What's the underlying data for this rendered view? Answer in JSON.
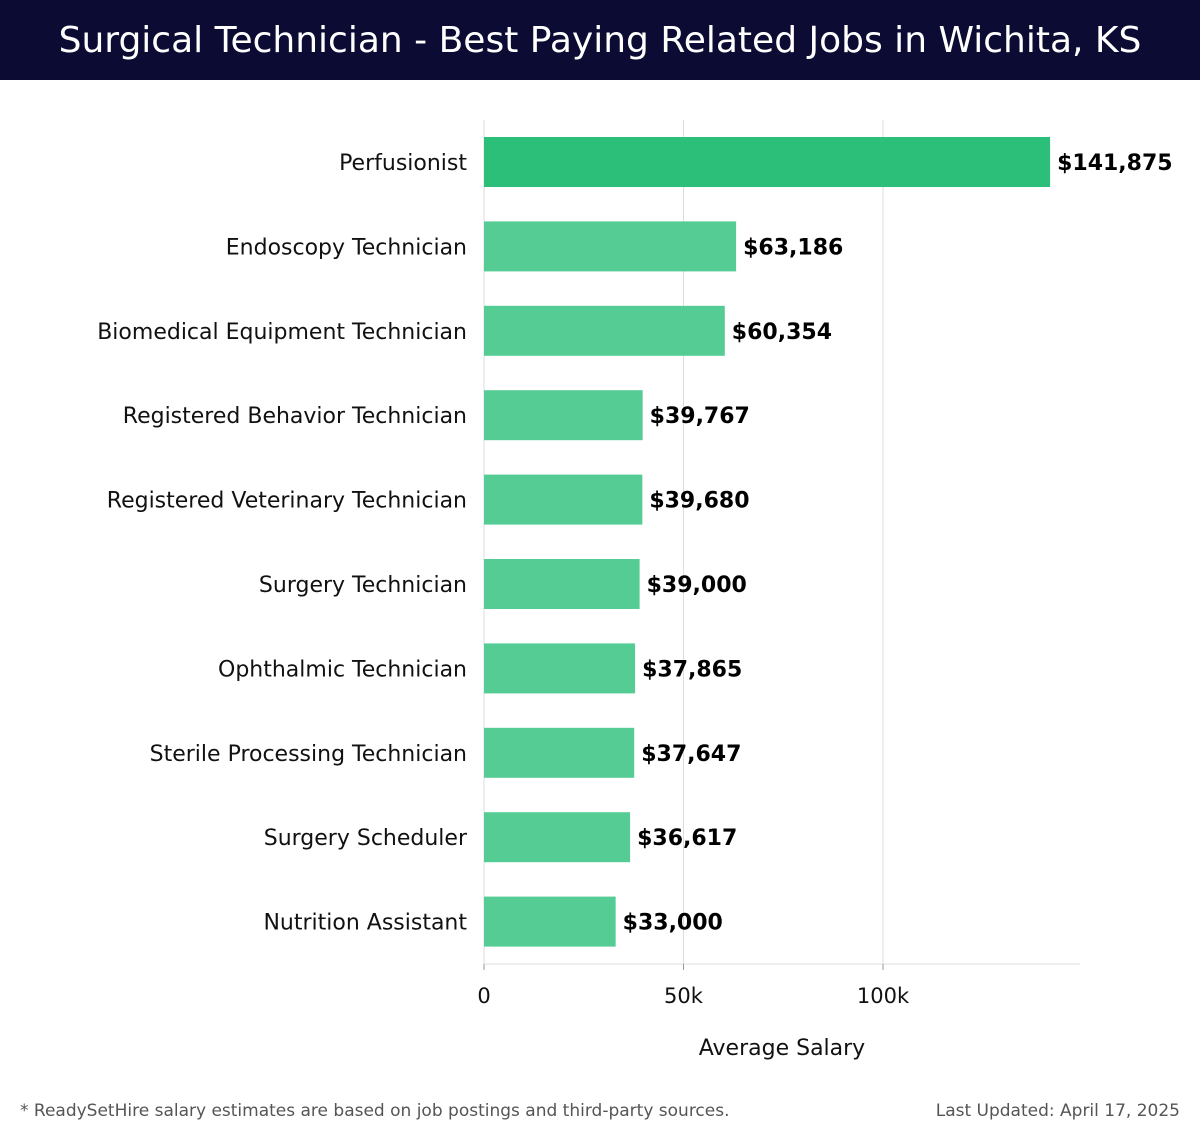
{
  "header": {
    "title": "Surgical Technician - Best Paying Related Jobs in Wichita, KS"
  },
  "footer": {
    "note": "* ReadySetHire salary estimates are based on job postings and third-party sources.",
    "updated": "Last Updated: April 17, 2025"
  },
  "colors": {
    "title_background": "#0b0b33",
    "top_bar": "#2bbf7a",
    "bar": "#56cc95",
    "grid": "#dddddd"
  },
  "chart_data": {
    "type": "bar",
    "orientation": "horizontal",
    "categories": [
      "Perfusionist",
      "Endoscopy Technician",
      "Biomedical Equipment Technician",
      "Registered Behavior Technician",
      "Registered Veterinary Technician",
      "Surgery Technician",
      "Ophthalmic Technician",
      "Sterile Processing Technician",
      "Surgery Scheduler",
      "Nutrition Assistant"
    ],
    "values": [
      141875,
      63186,
      60354,
      39767,
      39680,
      39000,
      37865,
      37647,
      36617,
      33000
    ],
    "value_labels": [
      "$141,875",
      "$63,186",
      "$60,354",
      "$39,767",
      "$39,680",
      "$39,000",
      "$37,865",
      "$37,647",
      "$36,617",
      "$33,000"
    ],
    "xlabel": "Average Salary",
    "ylabel": "",
    "xticks": [
      0,
      50000,
      100000
    ],
    "xtick_labels": [
      "0",
      "50k",
      "100k"
    ],
    "xlim": [
      0,
      149000
    ],
    "grid": true
  }
}
